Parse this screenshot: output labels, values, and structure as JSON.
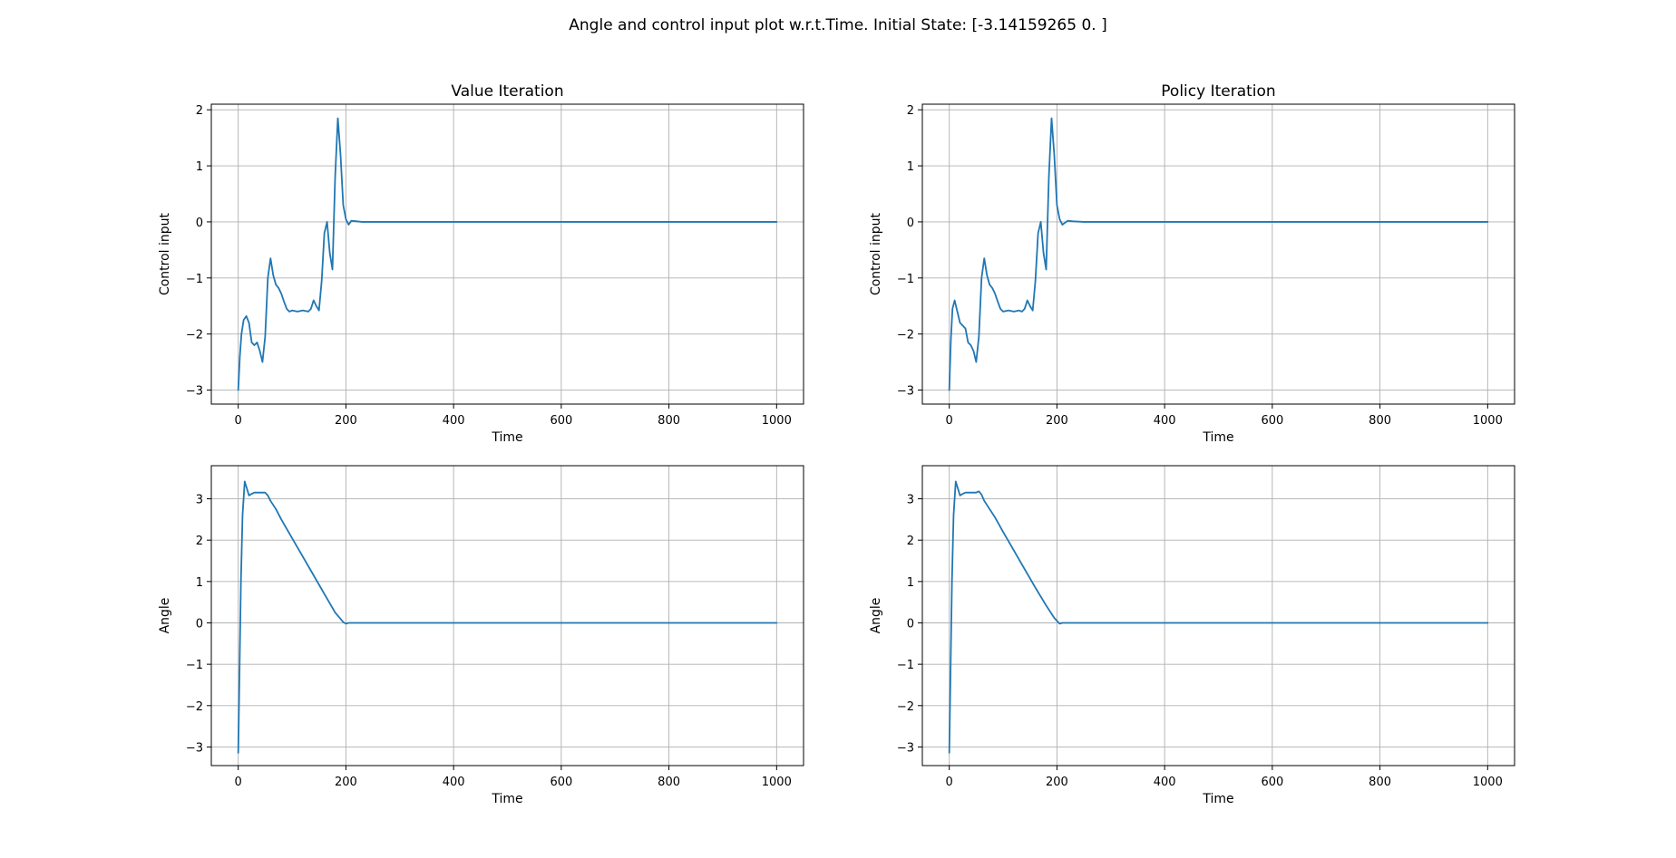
{
  "figure": {
    "suptitle": "Angle and control input plot w.r.t.Time. Initial State: [-3.14159265  0.        ]"
  },
  "colors": {
    "line": "#1f77b4",
    "grid": "#b0b0b0",
    "axes": "#000000",
    "background": "#ffffff"
  },
  "chart_data": [
    {
      "type": "line",
      "title": "Value Iteration",
      "xlabel": "Time",
      "ylabel": "Control input",
      "xlim": [
        -50,
        1050
      ],
      "ylim": [
        -3.25,
        2.1
      ],
      "xticks": [
        0,
        200,
        400,
        600,
        800,
        1000
      ],
      "yticks": [
        -3,
        -2,
        -1,
        0,
        1,
        2
      ],
      "grid": true,
      "series": [
        {
          "x": [
            0,
            3,
            6,
            10,
            15,
            20,
            25,
            30,
            35,
            40,
            45,
            50,
            55,
            60,
            65,
            70,
            75,
            80,
            85,
            90,
            95,
            100,
            110,
            120,
            130,
            135,
            140,
            145,
            150,
            155,
            160,
            165,
            170,
            175,
            180,
            185,
            190,
            195,
            200,
            205,
            210,
            220,
            230,
            250,
            400,
            600,
            800,
            1000
          ],
          "y": [
            -3.0,
            -2.4,
            -2.0,
            -1.75,
            -1.68,
            -1.8,
            -2.15,
            -2.2,
            -2.15,
            -2.3,
            -2.5,
            -2.05,
            -1.0,
            -0.65,
            -0.95,
            -1.12,
            -1.18,
            -1.28,
            -1.42,
            -1.55,
            -1.6,
            -1.58,
            -1.6,
            -1.58,
            -1.6,
            -1.55,
            -1.4,
            -1.5,
            -1.58,
            -1.05,
            -0.2,
            0.0,
            -0.55,
            -0.85,
            0.8,
            1.85,
            1.2,
            0.3,
            0.05,
            -0.05,
            0.02,
            0.01,
            0.0,
            0.0,
            0.0,
            0.0,
            0.0,
            0.0
          ]
        }
      ]
    },
    {
      "type": "line",
      "title": "Policy Iteration",
      "xlabel": "Time",
      "ylabel": "Control input",
      "xlim": [
        -50,
        1050
      ],
      "ylim": [
        -3.25,
        2.1
      ],
      "xticks": [
        0,
        200,
        400,
        600,
        800,
        1000
      ],
      "yticks": [
        -3,
        -2,
        -1,
        0,
        1,
        2
      ],
      "grid": true,
      "series": [
        {
          "x": [
            0,
            3,
            6,
            10,
            15,
            20,
            25,
            30,
            35,
            40,
            45,
            50,
            55,
            60,
            65,
            70,
            75,
            80,
            85,
            90,
            95,
            100,
            110,
            120,
            130,
            135,
            140,
            145,
            150,
            155,
            160,
            165,
            170,
            175,
            180,
            185,
            190,
            195,
            200,
            205,
            210,
            220,
            230,
            250,
            400,
            600,
            800,
            1000
          ],
          "y": [
            -3.0,
            -2.1,
            -1.55,
            -1.4,
            -1.6,
            -1.8,
            -1.85,
            -1.9,
            -2.15,
            -2.2,
            -2.3,
            -2.5,
            -2.05,
            -1.0,
            -0.65,
            -0.95,
            -1.12,
            -1.18,
            -1.28,
            -1.42,
            -1.55,
            -1.6,
            -1.58,
            -1.6,
            -1.58,
            -1.6,
            -1.55,
            -1.4,
            -1.5,
            -1.58,
            -1.05,
            -0.2,
            0.0,
            -0.55,
            -0.85,
            0.8,
            1.85,
            1.2,
            0.3,
            0.05,
            -0.05,
            0.02,
            0.01,
            0.0,
            0.0,
            0.0,
            0.0,
            0.0
          ]
        }
      ]
    },
    {
      "type": "line",
      "title": "",
      "xlabel": "Time",
      "ylabel": "Angle",
      "xlim": [
        -50,
        1050
      ],
      "ylim": [
        -3.45,
        3.8
      ],
      "xticks": [
        0,
        200,
        400,
        600,
        800,
        1000
      ],
      "yticks": [
        -3,
        -2,
        -1,
        0,
        1,
        2,
        3
      ],
      "grid": true,
      "series": [
        {
          "x": [
            0,
            2,
            5,
            8,
            12,
            16,
            20,
            25,
            30,
            40,
            50,
            55,
            60,
            70,
            80,
            100,
            120,
            140,
            160,
            180,
            195,
            200,
            205,
            210,
            220,
            400,
            600,
            800,
            1000
          ],
          "y": [
            -3.14,
            -1.5,
            1.0,
            2.6,
            3.42,
            3.25,
            3.08,
            3.12,
            3.15,
            3.15,
            3.15,
            3.08,
            2.95,
            2.75,
            2.5,
            2.05,
            1.6,
            1.15,
            0.7,
            0.25,
            0.02,
            -0.02,
            0.0,
            0.0,
            0.0,
            0.0,
            0.0,
            0.0,
            0.0
          ]
        }
      ]
    },
    {
      "type": "line",
      "title": "",
      "xlabel": "Time",
      "ylabel": "Angle",
      "xlim": [
        -50,
        1050
      ],
      "ylim": [
        -3.45,
        3.8
      ],
      "xticks": [
        0,
        200,
        400,
        600,
        800,
        1000
      ],
      "yticks": [
        -3,
        -2,
        -1,
        0,
        1,
        2,
        3
      ],
      "grid": true,
      "series": [
        {
          "x": [
            0,
            2,
            5,
            8,
            12,
            16,
            20,
            25,
            30,
            40,
            50,
            55,
            60,
            65,
            75,
            85,
            100,
            120,
            140,
            160,
            180,
            195,
            205,
            210,
            215,
            230,
            400,
            600,
            800,
            1000
          ],
          "y": [
            -3.14,
            -1.5,
            1.0,
            2.6,
            3.42,
            3.25,
            3.08,
            3.12,
            3.15,
            3.15,
            3.15,
            3.18,
            3.1,
            2.95,
            2.75,
            2.55,
            2.2,
            1.75,
            1.3,
            0.85,
            0.42,
            0.12,
            -0.02,
            0.0,
            0.0,
            0.0,
            0.0,
            0.0,
            0.0,
            0.0
          ]
        }
      ]
    }
  ]
}
